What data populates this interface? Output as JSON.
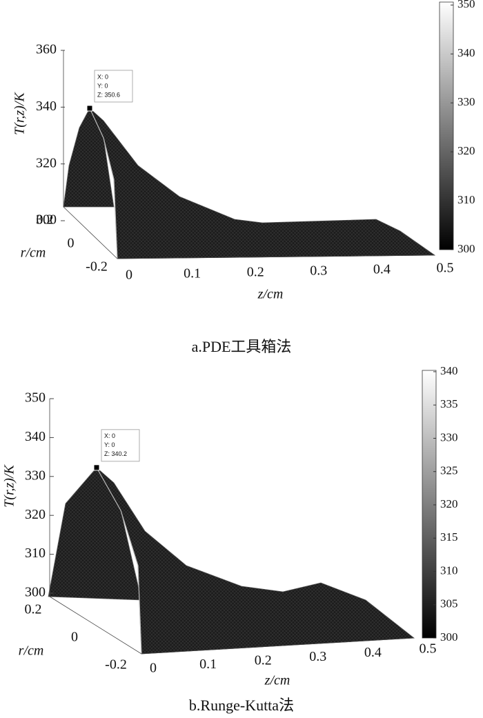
{
  "chart_data": [
    {
      "type": "surface3d",
      "caption": "a.PDE工具箱法",
      "zlabel": "T(r,z)/K",
      "xlabel": "z/cm",
      "ylabel": "r/cm",
      "xlim": [
        0,
        0.5
      ],
      "xticks": [
        0,
        0.1,
        0.2,
        0.3,
        0.4,
        0.5
      ],
      "ylim": [
        -0.2,
        0.2
      ],
      "yticks": [
        -0.2,
        0,
        0.2
      ],
      "zlim": [
        300,
        360
      ],
      "zticks": [
        300,
        320,
        340,
        360
      ],
      "colormap": "gray",
      "clim": [
        300,
        350.6
      ],
      "cticks": [
        300,
        310,
        320,
        330,
        340,
        350
      ],
      "datatip": {
        "x": 0,
        "y": 0,
        "z": 350.6,
        "labels": [
          "X: 0",
          "Y: 0",
          "Z: 350.6"
        ]
      }
    },
    {
      "type": "surface3d",
      "caption": "b.Runge-Kutta法",
      "zlabel": "T(r,z)/K",
      "xlabel": "z/cm",
      "ylabel": "r/cm",
      "xlim": [
        0,
        0.5
      ],
      "xticks": [
        0,
        0.1,
        0.2,
        0.3,
        0.4,
        0.5
      ],
      "ylim": [
        -0.2,
        0.2
      ],
      "yticks": [
        -0.2,
        0,
        0.2
      ],
      "zlim": [
        300,
        350
      ],
      "zticks": [
        300,
        310,
        320,
        330,
        340,
        350
      ],
      "colormap": "gray",
      "clim": [
        300,
        340.2
      ],
      "cticks": [
        300,
        305,
        310,
        315,
        320,
        325,
        330,
        335,
        340
      ],
      "datatip": {
        "x": 0,
        "y": 0,
        "z": 340.2,
        "labels": [
          "X: 0",
          "Y: 0",
          "Z: 340.2"
        ]
      }
    }
  ]
}
